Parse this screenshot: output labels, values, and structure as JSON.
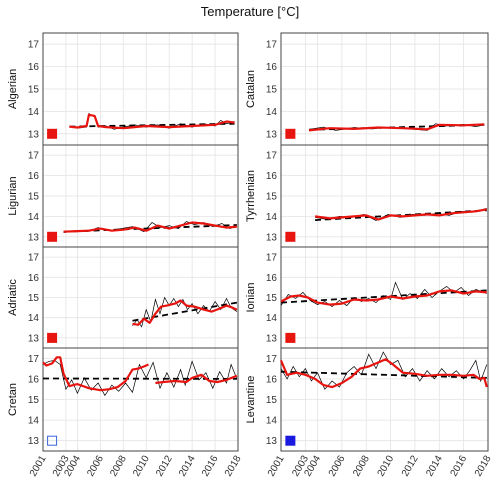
{
  "title": "Temperature [°C]",
  "chart_data": {
    "type": "line",
    "xlim": [
      2001,
      2018
    ],
    "ylim": [
      12.5,
      17.5
    ],
    "yticks": [
      13,
      14,
      15,
      16,
      17
    ],
    "xticks": [
      2001,
      2003,
      2004,
      2006,
      2008,
      2010,
      2012,
      2014,
      2016,
      2018
    ],
    "xtick_labels": [
      "2001",
      "2003",
      "2004",
      "2006",
      "2008",
      "2010",
      "2012",
      "2014",
      "2016",
      "2018"
    ],
    "grid": true,
    "colors": {
      "raw": "#000000",
      "smoothed": "#e8140f",
      "trend": "#000000"
    },
    "panels": [
      {
        "name": "Algerian",
        "marker": {
          "color": "#e8140f",
          "filled": true
        },
        "trend": {
          "x": [
            2003.3,
            2017.7
          ],
          "y": [
            13.32,
            13.45
          ]
        },
        "smoothed": {
          "x": [
            2003.3,
            2004,
            2004.8,
            2005.0,
            2005.5,
            2005.8,
            2006.5,
            2008,
            2010,
            2012,
            2014,
            2016,
            2017.0,
            2017.7
          ],
          "y": [
            13.32,
            13.28,
            13.35,
            13.85,
            13.8,
            13.35,
            13.3,
            13.25,
            13.35,
            13.3,
            13.35,
            13.4,
            13.55,
            13.5
          ]
        },
        "raw": {
          "x": [
            2003.3,
            2004,
            2004.8,
            2005.0,
            2005.5,
            2005.8,
            2006.5,
            2007.2,
            2008,
            2009,
            2010,
            2011,
            2012,
            2013,
            2014,
            2015,
            2016,
            2016.5,
            2017.0,
            2017.7
          ],
          "y": [
            13.35,
            13.25,
            13.3,
            13.9,
            13.75,
            13.3,
            13.35,
            13.2,
            13.3,
            13.4,
            13.3,
            13.4,
            13.25,
            13.45,
            13.3,
            13.45,
            13.35,
            13.6,
            13.45,
            13.55
          ]
        }
      },
      {
        "name": "Catalan",
        "marker": {
          "color": "#e8140f",
          "filled": true
        },
        "trend": {
          "x": [
            2003.3,
            2017.7
          ],
          "y": [
            13.18,
            13.4
          ]
        },
        "smoothed": {
          "x": [
            2003.3,
            2005,
            2007,
            2009,
            2011,
            2013,
            2014,
            2016,
            2017.7
          ],
          "y": [
            13.15,
            13.25,
            13.22,
            13.28,
            13.25,
            13.2,
            13.4,
            13.38,
            13.42
          ]
        },
        "raw": {
          "x": [
            2003.3,
            2004.5,
            2005.5,
            2007,
            2008.5,
            2010,
            2011.5,
            2013,
            2013.7,
            2014.5,
            2016,
            2017,
            2017.7
          ],
          "y": [
            13.2,
            13.3,
            13.15,
            13.28,
            13.22,
            13.3,
            13.22,
            13.15,
            13.45,
            13.35,
            13.42,
            13.32,
            13.4
          ]
        }
      },
      {
        "name": "Ligurian",
        "marker": {
          "color": "#e8140f",
          "filled": true
        },
        "trend": {
          "x": [
            2002.8,
            2017.9
          ],
          "y": [
            13.25,
            13.58
          ]
        },
        "smoothed": {
          "x": [
            2002.8,
            2004,
            2005,
            2006,
            2007,
            2008,
            2009,
            2010,
            2011,
            2012,
            2013,
            2014,
            2015,
            2016,
            2017,
            2017.9
          ],
          "y": [
            13.25,
            13.28,
            13.3,
            13.4,
            13.3,
            13.35,
            13.45,
            13.3,
            13.55,
            13.4,
            13.55,
            13.7,
            13.65,
            13.55,
            13.45,
            13.5
          ]
        },
        "raw": {
          "x": [
            2002.8,
            2003.8,
            2004.8,
            2005.8,
            2006.8,
            2007.8,
            2008.8,
            2009.8,
            2010.5,
            2011.2,
            2012,
            2012.8,
            2013.5,
            2014.2,
            2015,
            2015.8,
            2016.6,
            2017.3,
            2017.9
          ],
          "y": [
            13.2,
            13.3,
            13.25,
            13.45,
            13.3,
            13.4,
            13.5,
            13.25,
            13.7,
            13.45,
            13.55,
            13.4,
            13.75,
            13.6,
            13.7,
            13.5,
            13.65,
            13.4,
            13.55
          ]
        }
      },
      {
        "name": "Tyrrhenian",
        "marker": {
          "color": "#e8140f",
          "filled": true
        },
        "trend": {
          "x": [
            2003.8,
            2017.9
          ],
          "y": [
            13.82,
            14.3
          ]
        },
        "smoothed": {
          "x": [
            2003.8,
            2005,
            2006,
            2007,
            2008,
            2009,
            2010,
            2011,
            2012,
            2013,
            2014,
            2015,
            2016,
            2017,
            2017.9
          ],
          "y": [
            14.0,
            13.9,
            13.95,
            14.0,
            14.05,
            13.85,
            14.05,
            14.0,
            14.05,
            14.1,
            14.05,
            14.15,
            14.2,
            14.25,
            14.35
          ]
        },
        "raw": {
          "x": [
            2003.8,
            2004.8,
            2005.8,
            2006.8,
            2007.8,
            2008.8,
            2009.8,
            2010.8,
            2011.8,
            2012.8,
            2013.8,
            2014.8,
            2015.8,
            2016.8,
            2017.9
          ],
          "y": [
            13.95,
            13.85,
            14.0,
            13.95,
            14.1,
            13.8,
            14.1,
            13.95,
            14.1,
            14.05,
            14.15,
            14.05,
            14.25,
            14.2,
            14.4
          ]
        }
      },
      {
        "name": "Adriatic",
        "marker": {
          "color": "#e8140f",
          "filled": true
        },
        "trend": {
          "x": [
            2008.8,
            2017.9
          ],
          "y": [
            13.85,
            14.75
          ]
        },
        "smoothed": {
          "x": [
            2008.8,
            2009.3,
            2009.8,
            2010.3,
            2010.8,
            2011.3,
            2011.8,
            2012.5,
            2013,
            2013.5,
            2014.2,
            2015,
            2015.7,
            2016.4,
            2017,
            2017.5,
            2017.9
          ],
          "y": [
            13.7,
            13.65,
            13.95,
            13.75,
            14.2,
            14.55,
            14.6,
            14.7,
            14.85,
            14.6,
            14.55,
            14.4,
            14.3,
            14.45,
            14.6,
            14.5,
            14.4
          ]
        },
        "raw": {
          "x": [
            2008.8,
            2009.2,
            2009.6,
            2010.0,
            2010.4,
            2010.8,
            2011.2,
            2011.6,
            2012.0,
            2012.4,
            2012.8,
            2013.2,
            2013.6,
            2014.0,
            2014.5,
            2015.0,
            2015.5,
            2016.0,
            2016.5,
            2017.0,
            2017.4,
            2017.9
          ],
          "y": [
            13.6,
            13.9,
            13.55,
            14.4,
            13.8,
            14.9,
            14.2,
            15.0,
            14.6,
            14.95,
            14.55,
            14.9,
            14.4,
            14.7,
            14.2,
            14.6,
            14.3,
            14.8,
            14.4,
            14.95,
            14.5,
            14.3
          ]
        }
      },
      {
        "name": "Ionian",
        "marker": {
          "color": "#e8140f",
          "filled": true
        },
        "trend": {
          "x": [
            2001.0,
            2017.9
          ],
          "y": [
            14.75,
            15.35
          ]
        },
        "smoothed": {
          "x": [
            2001.0,
            2001.8,
            2002.5,
            2003.2,
            2004,
            2005,
            2006,
            2007,
            2008,
            2009,
            2010,
            2011,
            2012,
            2013,
            2014,
            2015,
            2016,
            2017,
            2017.9
          ],
          "y": [
            14.8,
            15.05,
            15.1,
            15.0,
            14.75,
            14.65,
            14.7,
            14.9,
            14.85,
            14.9,
            15.05,
            14.95,
            15.05,
            15.1,
            15.3,
            15.35,
            15.2,
            15.3,
            15.25
          ]
        },
        "raw": {
          "x": [
            2001.0,
            2001.6,
            2002.2,
            2002.8,
            2003.4,
            2004.0,
            2004.6,
            2005.2,
            2005.8,
            2006.4,
            2007.0,
            2007.6,
            2008.2,
            2008.8,
            2009.4,
            2010.0,
            2010.4,
            2011.0,
            2011.6,
            2012.2,
            2012.8,
            2013.4,
            2014.0,
            2014.6,
            2015.2,
            2015.8,
            2016.4,
            2017.0,
            2017.9
          ],
          "y": [
            14.6,
            15.15,
            14.95,
            15.25,
            14.85,
            14.65,
            14.8,
            14.55,
            14.85,
            14.6,
            15.0,
            14.8,
            14.95,
            14.75,
            15.1,
            14.9,
            15.75,
            14.9,
            15.2,
            14.95,
            15.4,
            15.0,
            15.3,
            15.55,
            15.25,
            15.5,
            15.1,
            15.4,
            15.2
          ]
        }
      },
      {
        "name": "Cretan",
        "marker": {
          "color": "#3a64d8",
          "filled": false
        },
        "trend": {
          "x": [
            2001.0,
            2017.9
          ],
          "y": [
            16.02,
            16.0
          ]
        },
        "smoothed": {
          "x": [
            2001.0,
            2001.3,
            2001.8,
            2002.2,
            2002.5,
            2002.8,
            2003.3,
            2004.0,
            2005.0,
            2006.0,
            2006.8,
            2007.5,
            2008.2,
            2008.8,
            2009.3,
            2009.8,
            2010.2
          ],
          "y": [
            16.8,
            16.65,
            16.75,
            17.05,
            17.05,
            16.25,
            15.65,
            15.75,
            15.55,
            15.45,
            15.5,
            15.6,
            15.9,
            16.45,
            16.5,
            16.6,
            16.7
          ],
          "x2": [
            2010.8,
            2011.5,
            2012.5,
            2013.5,
            2014.0,
            2014.8,
            2015.5,
            2016.2,
            2017.0,
            2017.9
          ],
          "y2": [
            15.8,
            15.85,
            15.9,
            15.85,
            16.05,
            16.2,
            15.9,
            15.85,
            15.95,
            16.15
          ]
        },
        "raw": {
          "x": [
            2001.0,
            2001.5,
            2002.0,
            2002.5,
            2003.0,
            2003.5,
            2004.0,
            2004.6,
            2005.2,
            2005.8,
            2006.4,
            2007.0,
            2007.6,
            2008.2,
            2008.8,
            2009.4,
            2010.0,
            2010.6,
            2011.2,
            2011.8,
            2012.4,
            2013.0,
            2013.4,
            2014.0,
            2014.6,
            2015.2,
            2015.8,
            2016.4,
            2017.0,
            2017.4,
            2017.9
          ],
          "y": [
            16.7,
            16.85,
            16.9,
            16.7,
            15.5,
            15.95,
            15.3,
            16.05,
            15.45,
            15.8,
            15.2,
            15.7,
            15.4,
            15.8,
            15.35,
            16.7,
            16.05,
            16.8,
            15.55,
            16.3,
            15.6,
            16.45,
            15.7,
            16.85,
            15.95,
            16.3,
            15.55,
            16.35,
            15.8,
            16.7,
            16.0
          ]
        }
      },
      {
        "name": "Levantine",
        "marker": {
          "color": "#1a1adf",
          "filled": true
        },
        "trend": {
          "x": [
            2001.0,
            2017.9
          ],
          "y": [
            16.35,
            16.05
          ]
        },
        "smoothed": {
          "x": [
            2001.0,
            2001.5,
            2002.3,
            2003,
            2003.8,
            2004.5,
            2005.2,
            2006.0,
            2006.8,
            2007.5,
            2008.2,
            2009.0,
            2009.6,
            2010.2,
            2011,
            2012,
            2013,
            2014,
            2015,
            2016,
            2016.8,
            2017.3,
            2017.7,
            2017.9
          ],
          "y": [
            16.9,
            16.2,
            16.3,
            16.2,
            16.0,
            15.7,
            15.6,
            15.8,
            16.1,
            16.5,
            16.6,
            16.8,
            16.95,
            16.7,
            16.3,
            16.25,
            16.15,
            16.2,
            16.2,
            16.15,
            16.2,
            16.0,
            16.05,
            15.6
          ]
        },
        "raw": {
          "x": [
            2001.0,
            2001.5,
            2002.0,
            2002.5,
            2003.0,
            2003.5,
            2004.0,
            2004.6,
            2005.2,
            2005.8,
            2006.4,
            2007.0,
            2007.6,
            2008.2,
            2008.8,
            2009.4,
            2010.0,
            2010.6,
            2011.2,
            2011.8,
            2012.4,
            2013.0,
            2013.6,
            2014.2,
            2014.8,
            2015.4,
            2016.0,
            2016.5,
            2017.0,
            2017.4,
            2017.9
          ],
          "y": [
            16.5,
            16.0,
            16.6,
            16.1,
            16.5,
            15.9,
            16.3,
            15.5,
            15.9,
            15.6,
            16.3,
            16.6,
            16.2,
            17.2,
            16.5,
            17.3,
            16.7,
            16.9,
            16.1,
            16.5,
            15.9,
            16.4,
            16.0,
            16.5,
            16.1,
            16.4,
            16.0,
            16.4,
            16.9,
            15.9,
            16.7
          ]
        }
      }
    ]
  }
}
